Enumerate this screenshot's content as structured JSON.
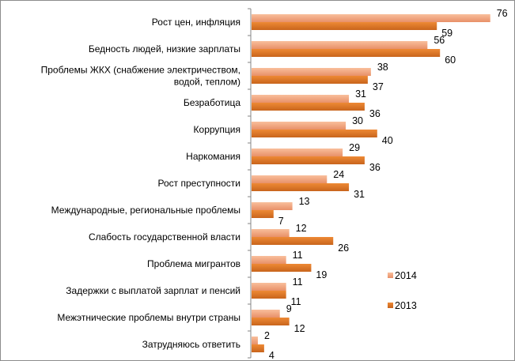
{
  "chart_data": {
    "type": "bar",
    "orientation": "horizontal",
    "categories": [
      "Рост цен, инфляция",
      "Бедность людей, низкие зарплаты",
      "Проблемы ЖКХ (снабжение электричеством, водой, теплом)",
      "Безработица",
      "Коррупция",
      "Наркомания",
      "Рост преступности",
      "Международные, региональные проблемы",
      "Слабость государственной власти",
      "Проблема мигрантов",
      "Задержки с выплатой зарплат и пенсий",
      "Межэтнические проблемы внутри страны",
      "Затрудняюсь ответить"
    ],
    "category_lines": [
      [
        "Рост цен, инфляция"
      ],
      [
        "Бедность людей, низкие зарплаты"
      ],
      [
        "Проблемы ЖКХ (снабжение электричеством,",
        "водой, теплом)"
      ],
      [
        "Безработица"
      ],
      [
        "Коррупция"
      ],
      [
        "Наркомания"
      ],
      [
        "Рост преступности"
      ],
      [
        "Международные, региональные проблемы"
      ],
      [
        "Слабость государственной власти"
      ],
      [
        "Проблема мигрантов"
      ],
      [
        "Задержки с выплатой зарплат и пенсий"
      ],
      [
        "Межэтнические проблемы внутри страны"
      ],
      [
        "Затрудняюсь ответить"
      ]
    ],
    "series": [
      {
        "name": "2014",
        "color": "#f4a57c",
        "values": [
          76,
          56,
          38,
          31,
          30,
          29,
          24,
          13,
          12,
          11,
          11,
          9,
          2
        ]
      },
      {
        "name": "2013",
        "color": "#e2782a",
        "values": [
          59,
          60,
          37,
          36,
          40,
          36,
          31,
          7,
          26,
          19,
          11,
          12,
          4
        ]
      }
    ],
    "xlim": [
      0,
      80
    ],
    "legend": "right",
    "grid": false,
    "title": "",
    "xlabel": "",
    "ylabel": ""
  }
}
